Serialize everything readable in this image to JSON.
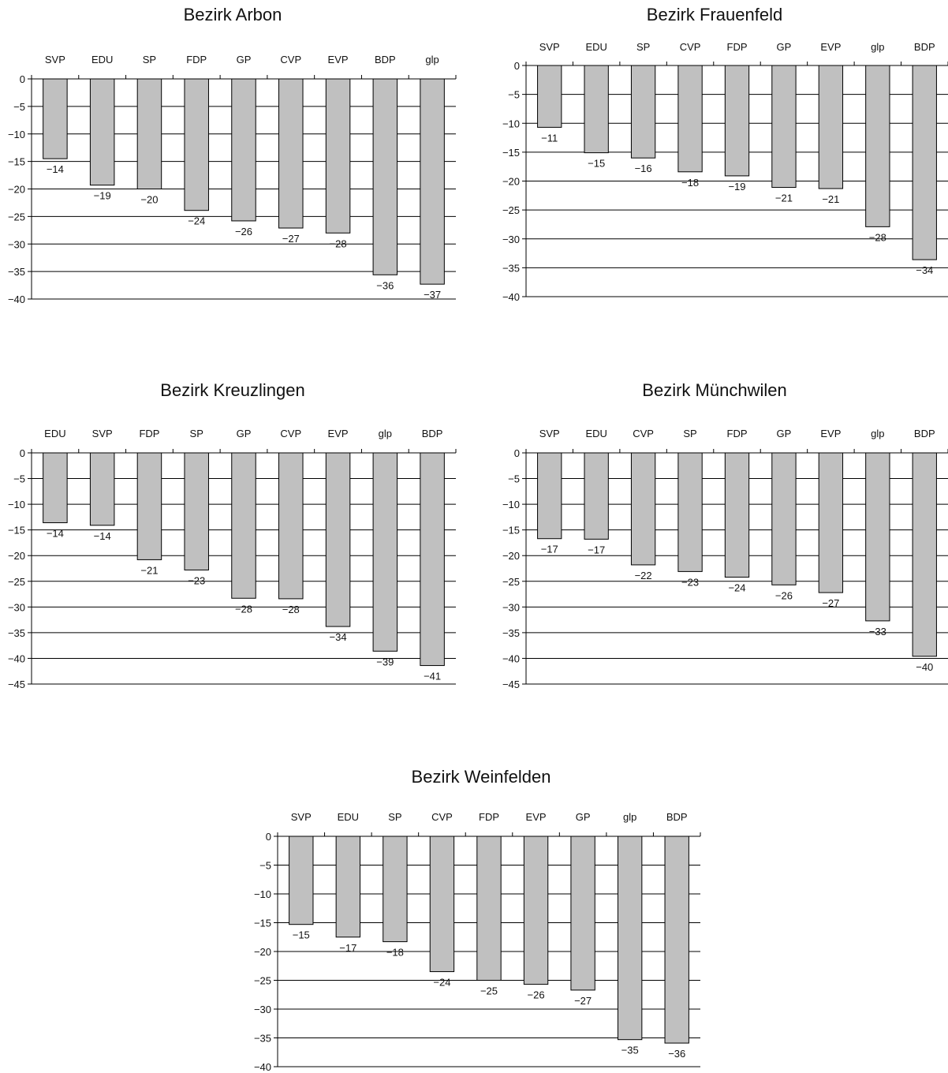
{
  "chart_data": [
    {
      "type": "bar",
      "title": "Bezirk Arbon",
      "categories": [
        "SVP",
        "EDU",
        "SP",
        "FDP",
        "GP",
        "CVP",
        "EVP",
        "BDP",
        "glp"
      ],
      "values": [
        -14,
        -19,
        -20,
        -24,
        -26,
        -27,
        -28,
        -36,
        -37
      ],
      "bar_values": [
        -14.5,
        -19.3,
        -20.0,
        -23.9,
        -25.8,
        -27.1,
        -28.0,
        -35.6,
        -37.3
      ],
      "ylim": [
        -40,
        0
      ],
      "yticks": [
        0,
        -5,
        -10,
        -15,
        -20,
        -25,
        -30,
        -35,
        -40
      ],
      "xlabel": "",
      "ylabel": "",
      "grid": true,
      "colors": {
        "bar": "#c0c0c0",
        "stroke": "#000000"
      }
    },
    {
      "type": "bar",
      "title": "Bezirk Frauenfeld",
      "categories": [
        "SVP",
        "EDU",
        "SP",
        "CVP",
        "FDP",
        "GP",
        "EVP",
        "glp",
        "BDP"
      ],
      "values": [
        -11,
        -15,
        -16,
        -18,
        -19,
        -21,
        -21,
        -28,
        -34
      ],
      "bar_values": [
        -10.7,
        -15.1,
        -16.0,
        -18.4,
        -19.1,
        -21.1,
        -21.3,
        -27.9,
        -33.6
      ],
      "ylim": [
        -40,
        0
      ],
      "yticks": [
        0,
        -5,
        -10,
        -15,
        -20,
        -25,
        -30,
        -35,
        -40
      ],
      "xlabel": "",
      "ylabel": "",
      "grid": true,
      "colors": {
        "bar": "#c0c0c0",
        "stroke": "#000000"
      }
    },
    {
      "type": "bar",
      "title": "Bezirk Kreuzlingen",
      "categories": [
        "EDU",
        "SVP",
        "FDP",
        "SP",
        "GP",
        "CVP",
        "EVP",
        "glp",
        "BDP"
      ],
      "values": [
        -14,
        -14,
        -21,
        -23,
        -28,
        -28,
        -34,
        -39,
        -41
      ],
      "bar_values": [
        -13.6,
        -14.1,
        -20.8,
        -22.8,
        -28.3,
        -28.4,
        -33.8,
        -38.6,
        -41.4
      ],
      "ylim": [
        -45,
        0
      ],
      "yticks": [
        0,
        -5,
        -10,
        -15,
        -20,
        -25,
        -30,
        -35,
        -40,
        -45
      ],
      "xlabel": "",
      "ylabel": "",
      "grid": true,
      "colors": {
        "bar": "#c0c0c0",
        "stroke": "#000000"
      }
    },
    {
      "type": "bar",
      "title": "Bezirk Münchwilen",
      "categories": [
        "SVP",
        "EDU",
        "CVP",
        "SP",
        "FDP",
        "GP",
        "EVP",
        "glp",
        "BDP"
      ],
      "values": [
        -17,
        -17,
        -22,
        -23,
        -24,
        -26,
        -27,
        -33,
        -40
      ],
      "bar_values": [
        -16.7,
        -16.8,
        -21.8,
        -23.1,
        -24.2,
        -25.7,
        -27.2,
        -32.7,
        -39.6
      ],
      "ylim": [
        -45,
        0
      ],
      "yticks": [
        0,
        -5,
        -10,
        -15,
        -20,
        -25,
        -30,
        -35,
        -40,
        -45
      ],
      "xlabel": "",
      "ylabel": "",
      "grid": true,
      "colors": {
        "bar": "#c0c0c0",
        "stroke": "#000000"
      }
    },
    {
      "type": "bar",
      "title": "Bezirk Weinfelden",
      "categories": [
        "SVP",
        "EDU",
        "SP",
        "CVP",
        "FDP",
        "EVP",
        "GP",
        "glp",
        "BDP"
      ],
      "values": [
        -15,
        -17,
        -18,
        -24,
        -25,
        -26,
        -27,
        -35,
        -36
      ],
      "bar_values": [
        -15.3,
        -17.5,
        -18.3,
        -23.5,
        -25.0,
        -25.7,
        -26.7,
        -35.3,
        -35.9
      ],
      "ylim": [
        -40,
        0
      ],
      "yticks": [
        0,
        -5,
        -10,
        -15,
        -20,
        -25,
        -30,
        -35,
        -40
      ],
      "xlabel": "",
      "ylabel": "",
      "grid": true,
      "colors": {
        "bar": "#c0c0c0",
        "stroke": "#000000"
      }
    }
  ]
}
